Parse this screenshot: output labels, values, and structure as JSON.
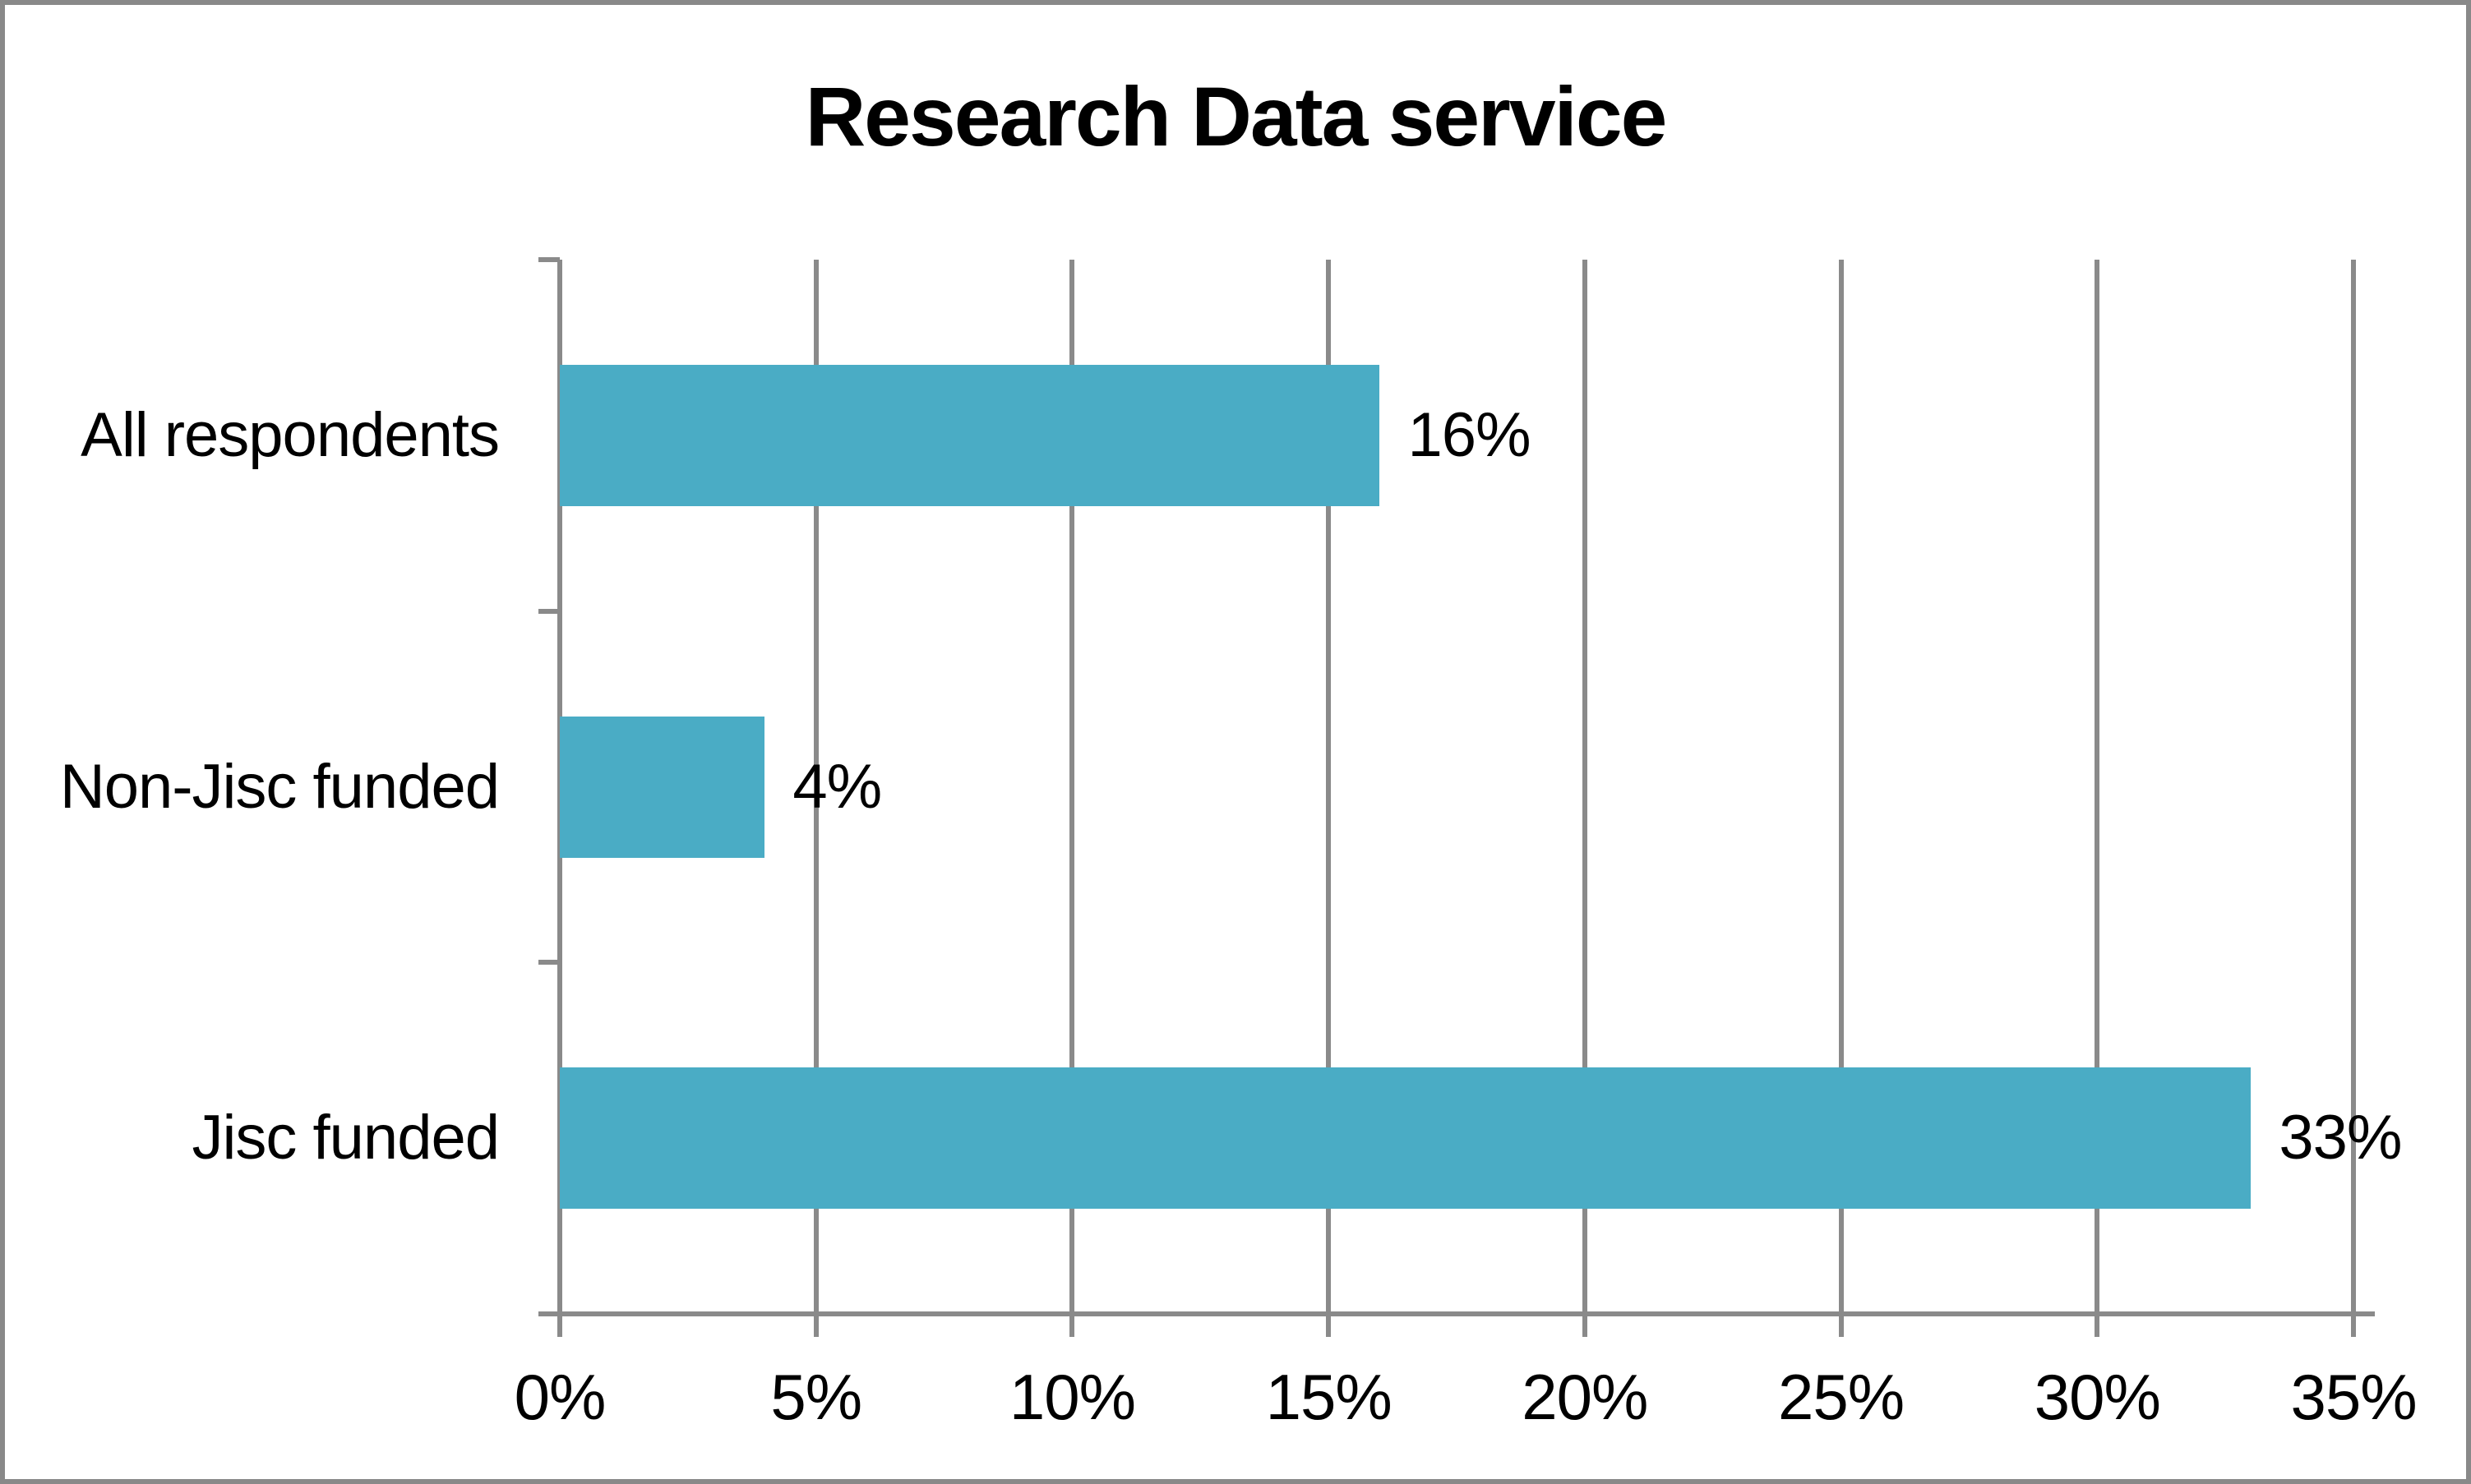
{
  "title": "Research Data service",
  "colors": {
    "bar": "#4AACC5",
    "gridline": "#8A8A8A",
    "axis": "#8A8A8A",
    "frame_border": "#898989",
    "text": "#000000",
    "background": "#FFFFFF"
  },
  "chart_data": {
    "type": "bar",
    "orientation": "horizontal",
    "title": "Research Data service",
    "categories": [
      "All respondents",
      "Non-Jisc funded",
      "Jisc funded"
    ],
    "values": [
      16,
      4,
      33
    ],
    "value_labels": [
      "16%",
      "4%",
      "33%"
    ],
    "xlabel": "",
    "ylabel": "",
    "xlim": [
      0,
      35
    ],
    "x_tick_values": [
      0,
      5,
      10,
      15,
      20,
      25,
      30,
      35
    ],
    "x_tick_labels": [
      "0%",
      "5%",
      "10%",
      "15%",
      "20%",
      "25%",
      "30%",
      "35%"
    ],
    "grid": true,
    "legend": false
  }
}
